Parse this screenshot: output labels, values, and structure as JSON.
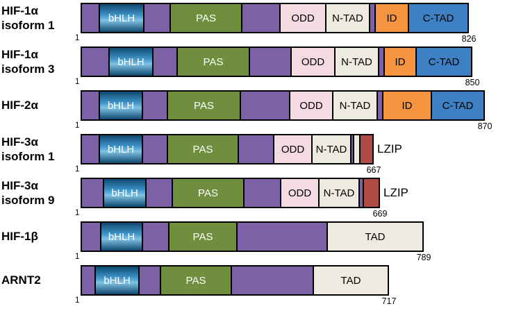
{
  "colors": {
    "backbone": "#7d61a6",
    "bhlh_dark": "#10486f",
    "bhlh_light": "#7fc2e3",
    "pas": "#6f8f3e",
    "odd": "#f4dbe2",
    "ntad": "#edeadf",
    "id": "#f79440",
    "ctad": "#3d80c4",
    "lzip": "#b04b46",
    "tad": "#edeadf",
    "thin": "#edeadf",
    "border": "#000000"
  },
  "rows": [
    {
      "name": "HIF-1α",
      "isoform": "isoform 1",
      "start": "1",
      "end": "826",
      "outside_label": "",
      "segments": [
        {
          "kind": "backbone",
          "label": "",
          "w": 28
        },
        {
          "kind": "bhlh",
          "label": "bHLH",
          "w": 66
        },
        {
          "kind": "backbone",
          "label": "",
          "w": 40
        },
        {
          "kind": "pas",
          "label": "PAS",
          "w": 105
        },
        {
          "kind": "backbone",
          "label": "",
          "w": 57
        },
        {
          "kind": "odd",
          "label": "ODD",
          "w": 68
        },
        {
          "kind": "ntad",
          "label": "N-TAD",
          "w": 65
        },
        {
          "kind": "backbone",
          "label": "",
          "w": 10
        },
        {
          "kind": "id",
          "label": "ID",
          "w": 50
        },
        {
          "kind": "ctad",
          "label": "C-TAD",
          "w": 88
        }
      ]
    },
    {
      "name": "HIF-1α",
      "isoform": "isoform 3",
      "start": "1",
      "end": "850",
      "outside_label": "",
      "segments": [
        {
          "kind": "backbone",
          "label": "",
          "w": 42
        },
        {
          "kind": "bhlh",
          "label": "bHLH",
          "w": 65
        },
        {
          "kind": "backbone",
          "label": "",
          "w": 37
        },
        {
          "kind": "pas",
          "label": "PAS",
          "w": 106
        },
        {
          "kind": "backbone",
          "label": "",
          "w": 62
        },
        {
          "kind": "odd",
          "label": "ODD",
          "w": 65
        },
        {
          "kind": "ntad",
          "label": "N-TAD",
          "w": 65
        },
        {
          "kind": "backbone",
          "label": "",
          "w": 10
        },
        {
          "kind": "id",
          "label": "ID",
          "w": 48
        },
        {
          "kind": "ctad",
          "label": "C-TAD",
          "w": 82
        }
      ]
    },
    {
      "name": "HIF-2α",
      "isoform": "",
      "start": "1",
      "end": "870",
      "outside_label": "",
      "segments": [
        {
          "kind": "backbone",
          "label": "",
          "w": 28
        },
        {
          "kind": "bhlh",
          "label": "bHLH",
          "w": 64
        },
        {
          "kind": "backbone",
          "label": "",
          "w": 38
        },
        {
          "kind": "pas",
          "label": "PAS",
          "w": 107
        },
        {
          "kind": "backbone",
          "label": "",
          "w": 73
        },
        {
          "kind": "odd",
          "label": "ODD",
          "w": 64
        },
        {
          "kind": "ntad",
          "label": "N-TAD",
          "w": 66
        },
        {
          "kind": "backbone",
          "label": "",
          "w": 10
        },
        {
          "kind": "id",
          "label": "ID",
          "w": 72
        },
        {
          "kind": "ctad",
          "label": "C-TAD",
          "w": 78
        }
      ]
    },
    {
      "name": "HIF-3α",
      "isoform": "isoform 1",
      "start": "1",
      "end": "667",
      "outside_label": "LZIP",
      "segments": [
        {
          "kind": "backbone",
          "label": "",
          "w": 28
        },
        {
          "kind": "bhlh",
          "label": "bHLH",
          "w": 64
        },
        {
          "kind": "backbone",
          "label": "",
          "w": 38
        },
        {
          "kind": "pas",
          "label": "PAS",
          "w": 104
        },
        {
          "kind": "backbone",
          "label": "",
          "w": 53
        },
        {
          "kind": "odd",
          "label": "ODD",
          "w": 57
        },
        {
          "kind": "ntad",
          "label": "N-TAD",
          "w": 58
        },
        {
          "kind": "backbone",
          "label": "",
          "w": 6
        },
        {
          "kind": "thin",
          "label": "",
          "w": 11
        },
        {
          "kind": "lzip",
          "label": "",
          "w": 21
        }
      ]
    },
    {
      "name": "HIF-3α",
      "isoform": "isoform 9",
      "start": "1",
      "end": "669",
      "outside_label": "LZIP",
      "segments": [
        {
          "kind": "backbone",
          "label": "",
          "w": 34
        },
        {
          "kind": "bhlh",
          "label": "bHLH",
          "w": 63
        },
        {
          "kind": "backbone",
          "label": "",
          "w": 40
        },
        {
          "kind": "pas",
          "label": "PAS",
          "w": 105
        },
        {
          "kind": "backbone",
          "label": "",
          "w": 55
        },
        {
          "kind": "odd",
          "label": "ODD",
          "w": 57
        },
        {
          "kind": "ntad",
          "label": "N-TAD",
          "w": 60
        },
        {
          "kind": "backbone",
          "label": "",
          "w": 8
        },
        {
          "kind": "lzip",
          "label": "",
          "w": 25
        }
      ]
    },
    {
      "name": "HIF-1β",
      "isoform": "",
      "start": "1",
      "end": "789",
      "outside_label": "",
      "segments": [
        {
          "kind": "backbone",
          "label": "",
          "w": 30
        },
        {
          "kind": "bhlh",
          "label": "bHLH",
          "w": 62
        },
        {
          "kind": "backbone",
          "label": "",
          "w": 40
        },
        {
          "kind": "pas",
          "label": "PAS",
          "w": 100
        },
        {
          "kind": "backbone",
          "label": "",
          "w": 132
        },
        {
          "kind": "tad",
          "label": "TAD",
          "w": 140
        }
      ]
    },
    {
      "name": "ARNT2",
      "isoform": "",
      "start": "1",
      "end": "717",
      "outside_label": "",
      "segments": [
        {
          "kind": "backbone",
          "label": "",
          "w": 22
        },
        {
          "kind": "bhlh",
          "label": "bHLH",
          "w": 65
        },
        {
          "kind": "backbone",
          "label": "",
          "w": 33
        },
        {
          "kind": "pas",
          "label": "PAS",
          "w": 104
        },
        {
          "kind": "backbone",
          "label": "",
          "w": 120
        },
        {
          "kind": "tad",
          "label": "TAD",
          "w": 110
        }
      ]
    }
  ]
}
